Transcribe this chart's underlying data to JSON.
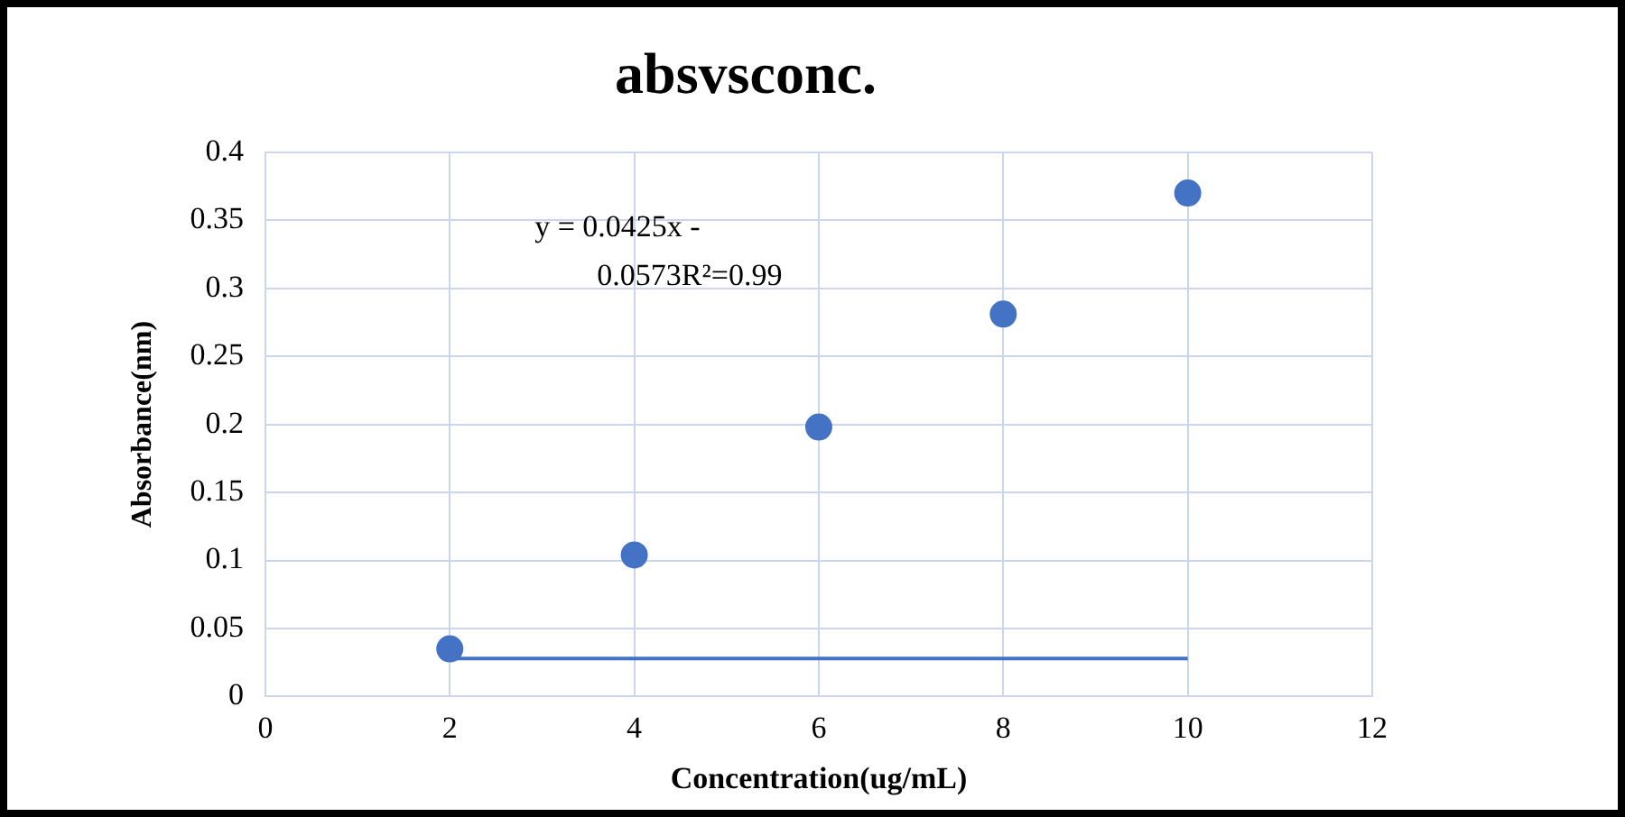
{
  "chart_data": {
    "type": "scatter",
    "title": "absvsconc.",
    "xlabel": "Concentration(ug/mL)",
    "ylabel": "Absorbance(nm)",
    "x": [
      2,
      4,
      6,
      8,
      10
    ],
    "series": [
      {
        "color": "#4472c4",
        "values": [
          0.035,
          0.104,
          0.198,
          0.281,
          0.37
        ]
      },
      {
        "type": "line",
        "marker": "none",
        "color": "#4472c4",
        "x": [
          2,
          10
        ],
        "values": [
          0.028,
          0.028
        ]
      }
    ],
    "xlim": [
      0,
      12
    ],
    "xticks": [
      0,
      2,
      4,
      6,
      8,
      10,
      12
    ],
    "ylim": [
      0,
      0.4
    ],
    "yticks": [
      0,
      0.05,
      0.1,
      0.15,
      0.2,
      0.25,
      0.3,
      0.35,
      0.4
    ],
    "annotations": [
      "y = 0.0425x - 0.0573R²=0.99"
    ],
    "grid": true,
    "legend": false,
    "marker": "circle"
  }
}
